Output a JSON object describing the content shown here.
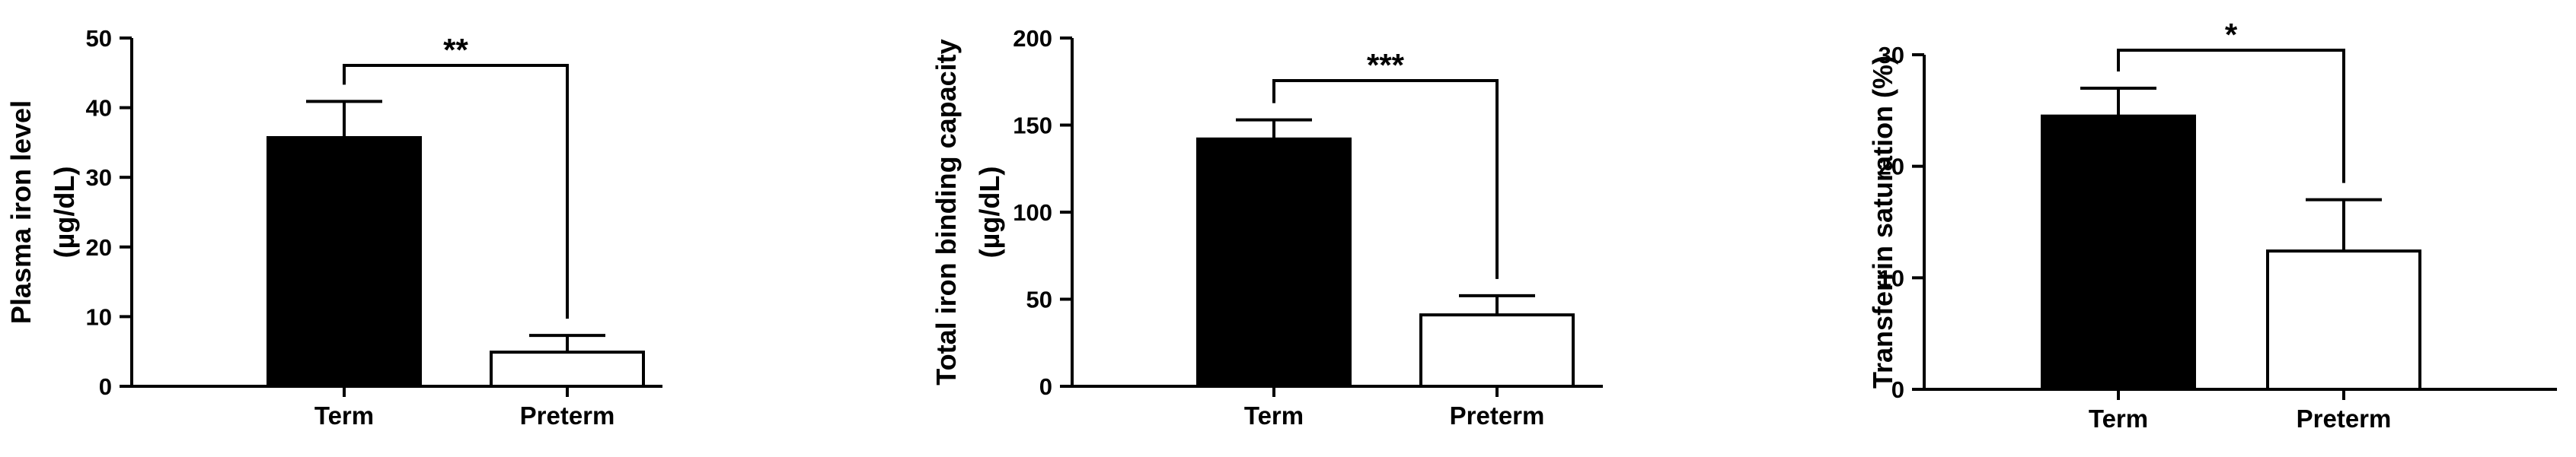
{
  "chart_data": [
    {
      "type": "bar",
      "categories": [
        "Term",
        "Preterm"
      ],
      "values": [
        35.7,
        4.9
      ],
      "errors": [
        5.2,
        2.4
      ],
      "ylabel_lines": [
        "Plasma iron level",
        "(µg/dL)"
      ],
      "ylim": [
        0,
        50
      ],
      "yticks": [
        0,
        10,
        20,
        30,
        40,
        50
      ],
      "significance": "**",
      "bar_fills": [
        "#000000",
        "#ffffff"
      ]
    },
    {
      "type": "bar",
      "categories": [
        "Term",
        "Preterm"
      ],
      "values": [
        142,
        41
      ],
      "errors": [
        11,
        11
      ],
      "ylabel_lines": [
        "Total iron binding capacity",
        "(µg/dL)"
      ],
      "ylim": [
        0,
        200
      ],
      "yticks": [
        0,
        50,
        100,
        150,
        200
      ],
      "significance": "***",
      "bar_fills": [
        "#000000",
        "#ffffff"
      ]
    },
    {
      "type": "bar",
      "categories": [
        "Term",
        "Preterm"
      ],
      "values": [
        24.5,
        12.4
      ],
      "errors": [
        2.5,
        4.6
      ],
      "ylabel_lines": [
        "Transferrin saturation (%)"
      ],
      "ylim": [
        0,
        30
      ],
      "yticks": [
        0,
        10,
        20,
        30
      ],
      "significance": "*",
      "bar_fills": [
        "#000000",
        "#ffffff"
      ]
    }
  ]
}
